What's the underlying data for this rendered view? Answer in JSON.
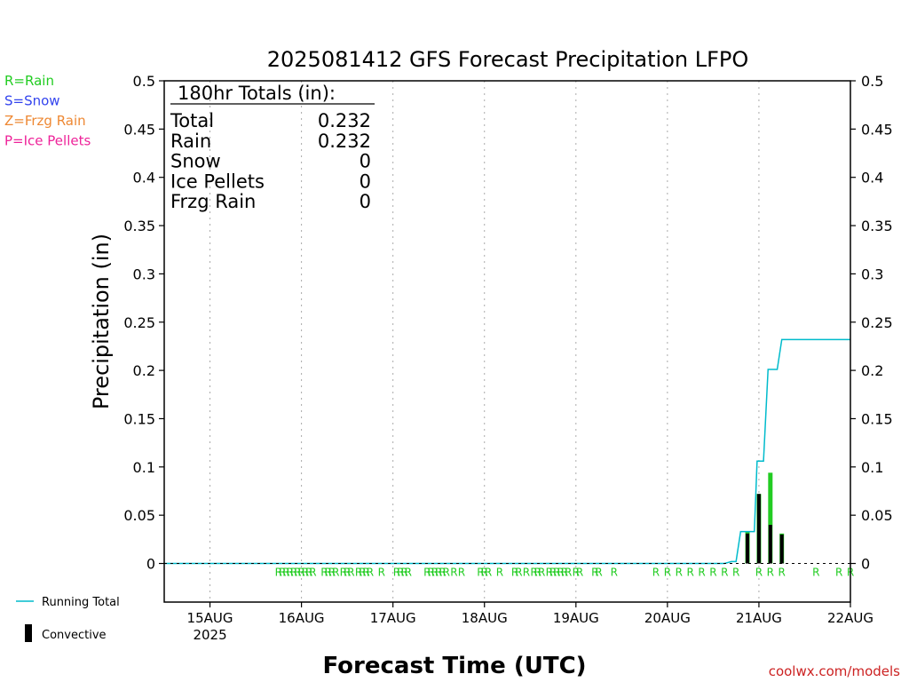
{
  "chart_data": {
    "type": "bar",
    "title": "2025081412 GFS Forecast Precipitation LFPO",
    "xlabel": "Forecast Time (UTC)",
    "ylabel": "Precipitation (in)",
    "ylim": [
      -0.04,
      0.5
    ],
    "xlim": [
      14.5,
      22.0
    ],
    "yticks": [
      0,
      0.05,
      0.1,
      0.15,
      0.2,
      0.25,
      0.3,
      0.35,
      0.4,
      0.45,
      0.5
    ],
    "ytick_labels": [
      "0",
      "0.05",
      "0.1",
      "0.15",
      "0.2",
      "0.25",
      "0.3",
      "0.35",
      "0.4",
      "0.45",
      "0.5"
    ],
    "xticks": [
      {
        "day": 15,
        "label": "15AUG",
        "sub": "2025"
      },
      {
        "day": 16,
        "label": "16AUG",
        "sub": ""
      },
      {
        "day": 17,
        "label": "17AUG",
        "sub": ""
      },
      {
        "day": 18,
        "label": "18AUG",
        "sub": ""
      },
      {
        "day": 19,
        "label": "19AUG",
        "sub": ""
      },
      {
        "day": 20,
        "label": "20AUG",
        "sub": ""
      },
      {
        "day": 21,
        "label": "21AUG",
        "sub": ""
      },
      {
        "day": 22,
        "label": "22AUG",
        "sub": ""
      }
    ],
    "grid": "vertical-dotted",
    "legend_left": [
      {
        "text": "R=Rain",
        "color": "#22cc22"
      },
      {
        "text": "S=Snow",
        "color": "#3344ee"
      },
      {
        "text": "Z=Frzg Rain",
        "color": "#ee8833"
      },
      {
        "text": "P=Ice Pellets",
        "color": "#ee2299"
      }
    ],
    "legend_bottom": {
      "running": {
        "text": "Running Total",
        "color": "#00bbcc"
      },
      "convective": {
        "text": "Convective",
        "color": "#000000"
      }
    },
    "totals": {
      "header": "180hr Totals (in):",
      "rows": [
        {
          "label": "Total",
          "value": "0.232"
        },
        {
          "label": "Rain",
          "value": "0.232"
        },
        {
          "label": "Snow",
          "value": "0"
        },
        {
          "label": "Ice Pellets",
          "value": "0"
        },
        {
          "label": "Frzg Rain",
          "value": "0"
        }
      ]
    },
    "bars": [
      {
        "x": 20.875,
        "total": 0.033,
        "convective": 0.031
      },
      {
        "x": 21.0,
        "total": 0.072,
        "convective": 0.072
      },
      {
        "x": 21.125,
        "total": 0.094,
        "convective": 0.04
      },
      {
        "x": 21.25,
        "total": 0.031,
        "convective": 0.03
      }
    ],
    "running_total": [
      [
        14.5,
        0
      ],
      [
        20.625,
        0
      ],
      [
        20.7,
        0.002
      ],
      [
        20.75,
        0.002
      ],
      [
        20.8,
        0.033
      ],
      [
        20.95,
        0.033
      ],
      [
        20.98,
        0.106
      ],
      [
        21.05,
        0.106
      ],
      [
        21.1,
        0.201
      ],
      [
        21.2,
        0.201
      ],
      [
        21.25,
        0.232
      ],
      [
        22.0,
        0.232
      ]
    ],
    "precip_type_marks": {
      "letter": "R",
      "color": "#22cc22",
      "x": [
        15.75,
        15.7917,
        15.8333,
        15.875,
        15.9167,
        15.9583,
        16.0,
        16.0417,
        16.0833,
        16.125,
        16.25,
        16.2917,
        16.3333,
        16.375,
        16.4583,
        16.5,
        16.5417,
        16.625,
        16.6667,
        16.7083,
        16.75,
        16.875,
        17.0417,
        17.0833,
        17.125,
        17.1667,
        17.375,
        17.4167,
        17.4583,
        17.5,
        17.5417,
        17.5833,
        17.6667,
        17.75,
        17.9583,
        18.0,
        18.0417,
        18.1667,
        18.3333,
        18.375,
        18.4583,
        18.5417,
        18.5833,
        18.625,
        18.7083,
        18.75,
        18.7917,
        18.8333,
        18.875,
        18.9167,
        19.0,
        19.0417,
        19.2083,
        19.25,
        19.4167,
        19.875,
        20.0,
        20.125,
        20.25,
        20.375,
        20.5,
        20.625,
        20.75,
        21.0,
        21.125,
        21.25,
        21.625,
        21.875,
        22.0
      ]
    }
  },
  "footer": {
    "site": "coolwx.com/models"
  }
}
